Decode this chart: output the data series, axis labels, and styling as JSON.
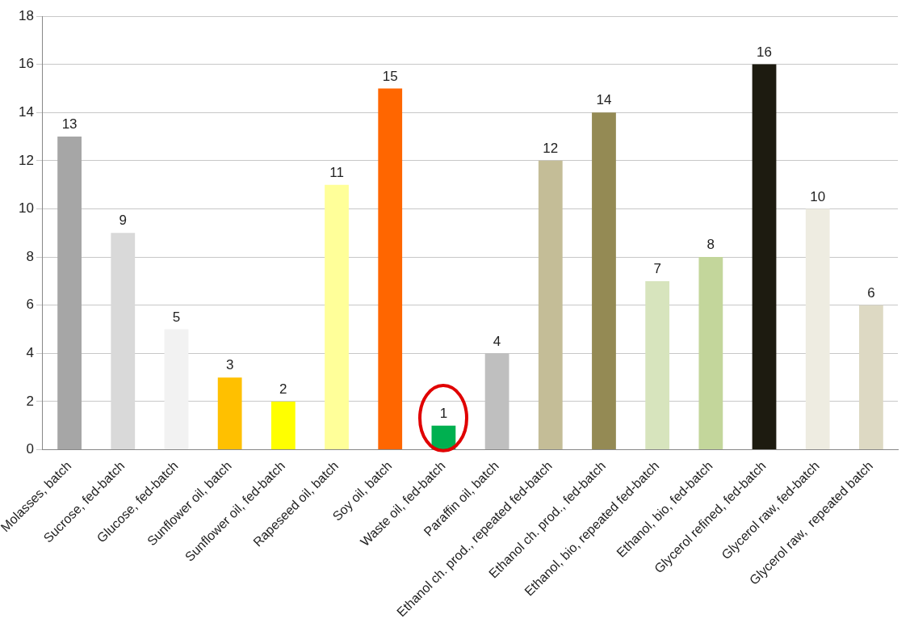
{
  "chart_data": {
    "type": "bar",
    "categories": [
      "Molasses, batch",
      "Sucrose, fed-batch",
      "Glucose, fed-batch",
      "Sunflower oil, batch",
      "Sunflower oil, fed-batch",
      "Rapeseed oil, batch",
      "Soy oil, batch",
      "Waste oil, fed-batch",
      "Paraffin oil, batch",
      "Ethanol ch. prod., repeated fed-batch",
      "Ethanol ch. prod., fed-batch",
      "Ethanol, bio, repeated fed-batch",
      "Ethanol, bio, fed-batch",
      "Glycerol refined, fed-batch",
      "Glycerol raw, fed-batch",
      "Glycerol raw,  repeated batch"
    ],
    "values": [
      13,
      9,
      5,
      3,
      2,
      11,
      15,
      1,
      4,
      12,
      14,
      7,
      8,
      16,
      10,
      6
    ],
    "colors": [
      "#a6a6a6",
      "#d9d9d9",
      "#f2f2f2",
      "#ffc000",
      "#ffff00",
      "#ffff99",
      "#ff6600",
      "#00b050",
      "#bfbfbf",
      "#c4bd97",
      "#948a54",
      "#d7e4bd",
      "#c3d69b",
      "#1d1b10",
      "#eeece1",
      "#ddd9c3"
    ],
    "ylim": [
      0,
      18
    ],
    "yticks": [
      0,
      2,
      4,
      6,
      8,
      10,
      12,
      14,
      16,
      18
    ],
    "grid": "y",
    "legend": false,
    "data_labels": true
  }
}
